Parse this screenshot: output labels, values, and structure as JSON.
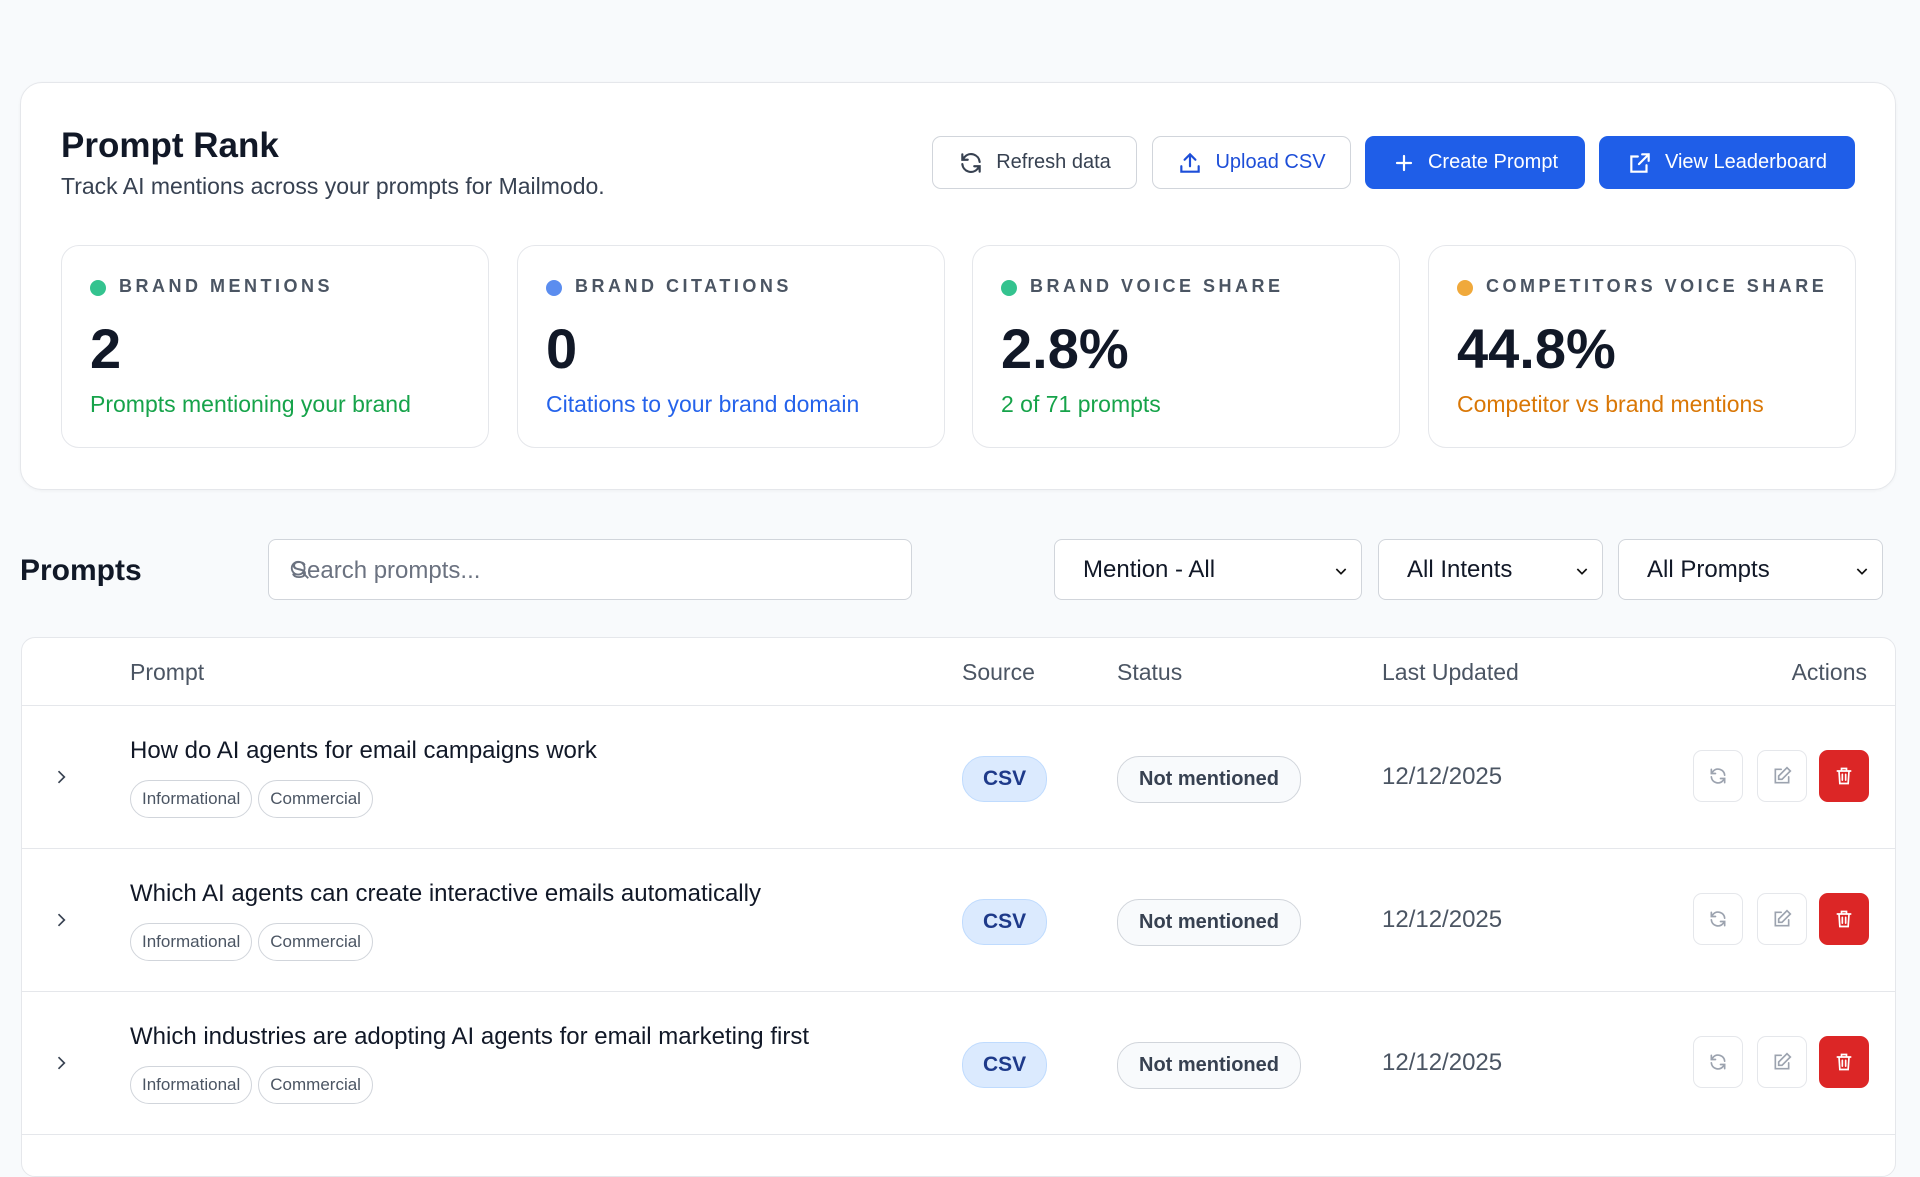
{
  "header": {
    "title": "Prompt Rank",
    "subtitle": "Track AI mentions across your prompts for Mailmodo.",
    "buttons": [
      "Refresh data",
      "Upload CSV",
      "Create Prompt",
      "View Leaderboard"
    ]
  },
  "stats": [
    {
      "label": "BRAND MENTIONS",
      "value": "2",
      "description": "Prompts mentioning your brand"
    },
    {
      "label": "BRAND CITATIONS",
      "value": "0",
      "description": "Citations to your brand domain"
    },
    {
      "label": "BRAND VOICE SHARE",
      "value": "2.8%",
      "description": "2 of 71 prompts"
    },
    {
      "label": "COMPETITORS VOICE SHARE",
      "value": "44.8%",
      "description": "Competitor vs brand mentions"
    }
  ],
  "prompts": {
    "title": "Prompts",
    "search_placeholder": "Search prompts...",
    "filters": [
      "Mention - All",
      "All Intents",
      "All Prompts"
    ]
  },
  "table": {
    "columns": [
      "Prompt",
      "Source",
      "Status",
      "Last Updated",
      "Actions"
    ],
    "rows": [
      {
        "prompt": "How do AI agents for email campaigns work",
        "tags": [
          "Informational",
          "Commercial"
        ],
        "source": "CSV",
        "status": "Not mentioned",
        "last_updated": "12/12/2025"
      },
      {
        "prompt": "Which AI agents can create interactive emails automatically",
        "tags": [
          "Informational",
          "Commercial"
        ],
        "source": "CSV",
        "status": "Not mentioned",
        "last_updated": "12/12/2025"
      },
      {
        "prompt": "Which industries are adopting AI agents for email marketing first",
        "tags": [
          "Informational",
          "Commercial"
        ],
        "source": "CSV",
        "status": "Not mentioned",
        "last_updated": "12/12/2025"
      }
    ]
  }
}
